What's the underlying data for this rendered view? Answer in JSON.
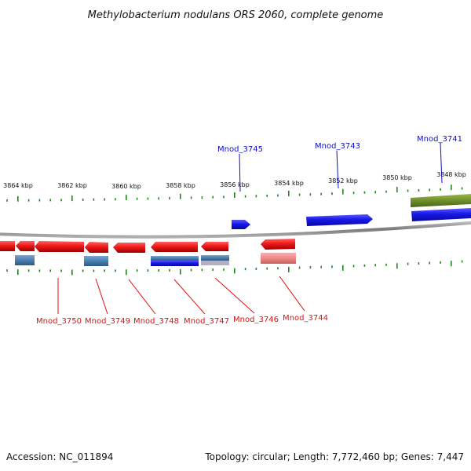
{
  "title": "Methylobacterium nodulans ORS 2060, complete genome",
  "footer": {
    "accession": "Accession: NC_011894",
    "topology": "Topology: circular; Length: 7,772,460 bp; Genes: 7,447"
  },
  "ruler": {
    "tick_labels": [
      "3864 kbp",
      "3862 kbp",
      "3860 kbp",
      "3858 kbp",
      "3856 kbp",
      "3854 kbp",
      "3852 kbp",
      "3850 kbp",
      "3848 kbp"
    ]
  },
  "labels": {
    "top": [
      "Mnod_3745",
      "Mnod_3743",
      "Mnod_3741"
    ],
    "bottom": [
      "Mnod_3750",
      "Mnod_3749",
      "Mnod_3748",
      "Mnod_3747",
      "Mnod_3746",
      "Mnod_3744"
    ]
  },
  "colors": {
    "backbone": "#8c8c8c",
    "tick": "#1a8a1a",
    "forward_gene": "#1818e8",
    "reverse_gene": "#ee1a1a",
    "light_red": "#f08888",
    "steel_blue": "#4a7fb0",
    "olive": "#6e8e2a",
    "label_blue": "#1010c0",
    "label_red": "#e01010"
  }
}
